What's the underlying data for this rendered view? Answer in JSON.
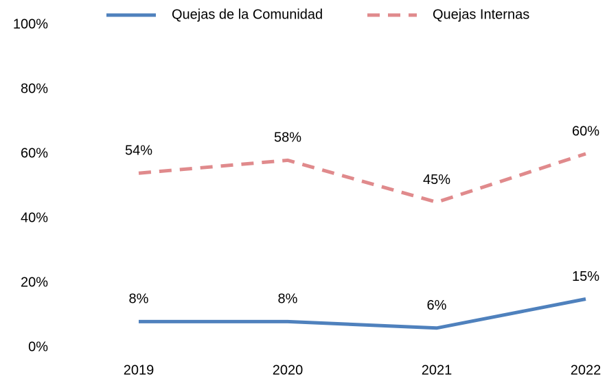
{
  "chart_data": {
    "type": "line",
    "categories": [
      "2019",
      "2020",
      "2021",
      "2022"
    ],
    "series": [
      {
        "name": "Quejas de la Comunidad",
        "color": "#4f81bd",
        "dash": false,
        "values": [
          8,
          8,
          6,
          15
        ],
        "value_labels": [
          "8%",
          "8%",
          "6%",
          "15%"
        ]
      },
      {
        "name": "Quejas Internas",
        "color": "#e08a8c",
        "dash": true,
        "values": [
          54,
          58,
          45,
          60
        ],
        "value_labels": [
          "54%",
          "58%",
          "45%",
          "60%"
        ]
      }
    ],
    "ylim": [
      0,
      100
    ],
    "yticks": [
      {
        "value": 0,
        "label": "0%"
      },
      {
        "value": 20,
        "label": "20%"
      },
      {
        "value": 40,
        "label": "40%"
      },
      {
        "value": 60,
        "label": "60%"
      },
      {
        "value": 80,
        "label": "80%"
      },
      {
        "value": 100,
        "label": "100%"
      }
    ],
    "grid": false,
    "legend": "top"
  }
}
